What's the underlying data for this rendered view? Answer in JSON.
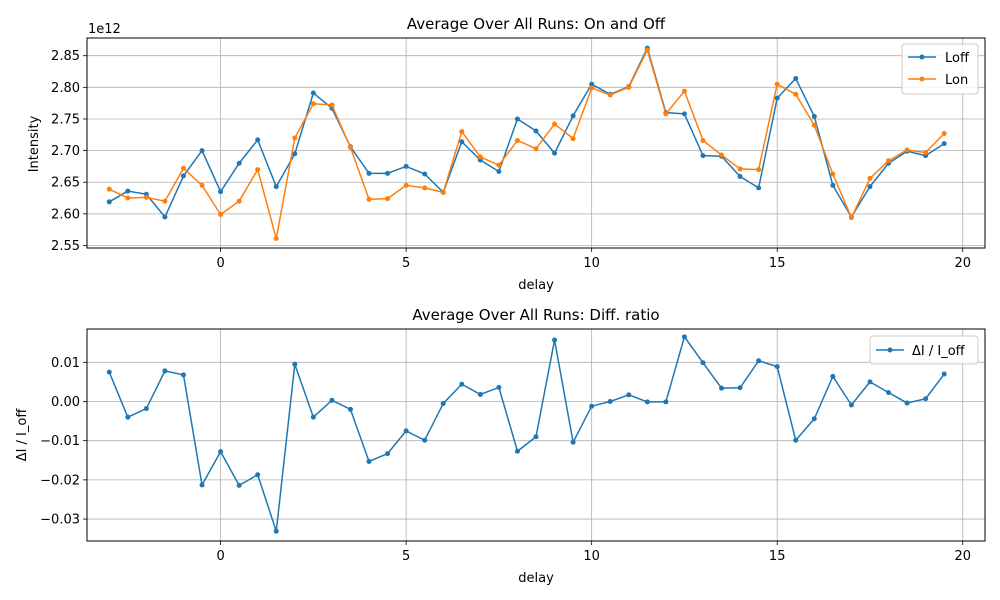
{
  "chart_data": [
    {
      "type": "line",
      "title": "Average Over All Runs: On and Off",
      "xlabel": "delay",
      "ylabel": "Intensity",
      "offset_label": "1e12",
      "xlim": [
        -3.6,
        20.6
      ],
      "ylim": [
        2.546,
        2.878
      ],
      "x_ticks": [
        0,
        5,
        10,
        15,
        20
      ],
      "y_ticks": [
        2.55,
        2.6,
        2.65,
        2.7,
        2.75,
        2.8,
        2.85
      ],
      "y_tick_labels": [
        "2.55",
        "2.60",
        "2.65",
        "2.70",
        "2.75",
        "2.80",
        "2.85"
      ],
      "grid": true,
      "legend": "top-right",
      "x": [
        -3,
        -2.5,
        -2,
        -1.5,
        -1,
        -0.5,
        0,
        0.5,
        1,
        1.5,
        2,
        2.5,
        3,
        3.5,
        4,
        4.5,
        5,
        5.5,
        6,
        6.5,
        7,
        7.5,
        8,
        8.5,
        9,
        9.5,
        10,
        10.5,
        11,
        11.5,
        12,
        12.5,
        13,
        13.5,
        14,
        14.5,
        15,
        15.5,
        16,
        16.5,
        17,
        17.5,
        18,
        18.5,
        19,
        19.5
      ],
      "series": [
        {
          "name": "Loff",
          "color": "#1f77b4",
          "values": [
            2.619,
            2.636,
            2.631,
            2.595,
            2.66,
            2.7,
            2.635,
            2.68,
            2.717,
            2.643,
            2.695,
            2.791,
            2.767,
            2.706,
            2.664,
            2.664,
            2.675,
            2.663,
            2.634,
            2.714,
            2.685,
            2.667,
            2.75,
            2.731,
            2.696,
            2.755,
            2.805,
            2.789,
            2.801,
            2.862,
            2.76,
            2.758,
            2.692,
            2.691,
            2.659,
            2.641,
            2.783,
            2.814,
            2.754,
            2.645,
            2.595,
            2.643,
            2.68,
            2.699,
            2.692,
            2.711
          ]
        },
        {
          "name": "Lon",
          "color": "#ff7f0e",
          "values": [
            2.639,
            2.625,
            2.626,
            2.62,
            2.672,
            2.645,
            2.599,
            2.62,
            2.67,
            2.561,
            2.72,
            2.774,
            2.772,
            2.705,
            2.623,
            2.624,
            2.645,
            2.641,
            2.634,
            2.73,
            2.69,
            2.677,
            2.716,
            2.703,
            2.742,
            2.719,
            2.799,
            2.788,
            2.8,
            2.859,
            2.758,
            2.794,
            2.716,
            2.693,
            2.671,
            2.67,
            2.805,
            2.789,
            2.74,
            2.663,
            2.594,
            2.656,
            2.684,
            2.701,
            2.697,
            2.727
          ]
        }
      ]
    },
    {
      "type": "line",
      "title": "Average Over All Runs: Diff. ratio",
      "xlabel": "delay",
      "ylabel": "ΔI / I_off",
      "xlim": [
        -3.6,
        20.6
      ],
      "ylim": [
        -0.0356,
        0.0185
      ],
      "x_ticks": [
        0,
        5,
        10,
        15,
        20
      ],
      "y_ticks": [
        -0.03,
        -0.02,
        -0.01,
        0.0,
        0.01
      ],
      "y_tick_labels": [
        "−0.03",
        "−0.02",
        "−0.01",
        "0.00",
        "0.01"
      ],
      "grid": true,
      "legend": "top-right",
      "x": [
        -3,
        -2.5,
        -2,
        -1.5,
        -1,
        -0.5,
        0,
        0.5,
        1,
        1.5,
        2,
        2.5,
        3,
        3.5,
        4,
        4.5,
        5,
        5.5,
        6,
        6.5,
        7,
        7.5,
        8,
        8.5,
        9,
        9.5,
        10,
        10.5,
        11,
        11.5,
        12,
        12.5,
        13,
        13.5,
        14,
        14.5,
        15,
        15.5,
        16,
        16.5,
        17,
        17.5,
        18,
        18.5,
        19,
        19.5
      ],
      "series": [
        {
          "name": "ΔI / I_off",
          "color": "#1f77b4",
          "values": [
            0.0075,
            -0.004,
            -0.0018,
            0.0078,
            0.0068,
            -0.0213,
            -0.0128,
            -0.0214,
            -0.0187,
            -0.0331,
            0.0095,
            -0.004,
            0.0003,
            -0.002,
            -0.0153,
            -0.0133,
            -0.0075,
            -0.0099,
            -0.0005,
            0.0044,
            0.0018,
            0.0036,
            -0.0127,
            -0.009,
            0.0157,
            -0.0104,
            -0.0012,
            0.0,
            0.0017,
            -0.0001,
            -0.0001,
            0.0165,
            0.0099,
            0.0034,
            0.0035,
            0.0104,
            0.0089,
            -0.0099,
            -0.0044,
            0.0064,
            -0.0009,
            0.005,
            0.0023,
            -0.0004,
            0.0007,
            0.007
          ]
        }
      ]
    }
  ]
}
